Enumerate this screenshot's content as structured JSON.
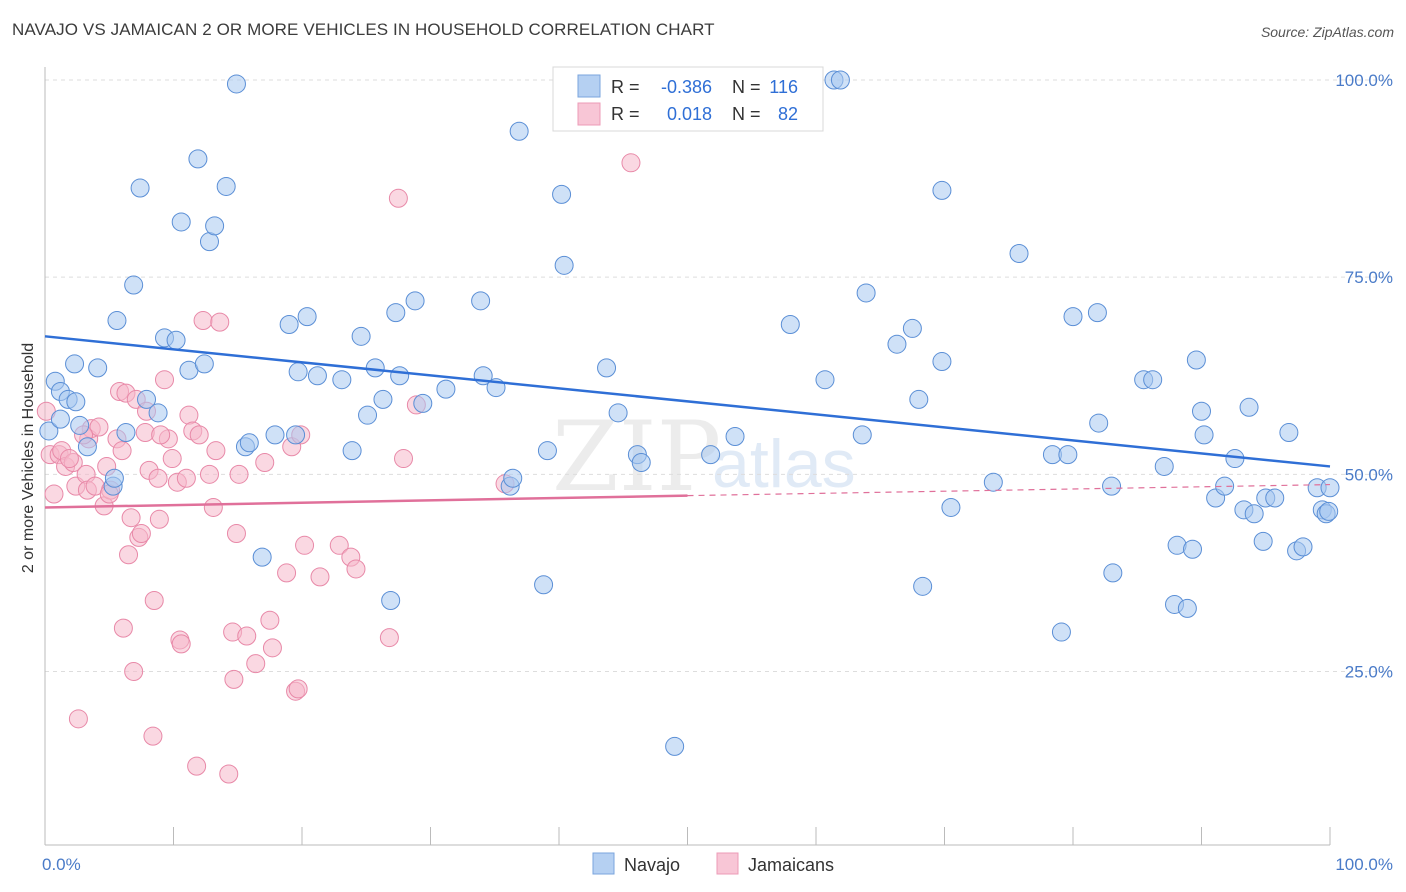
{
  "title": "NAVAJO VS JAMAICAN 2 OR MORE VEHICLES IN HOUSEHOLD CORRELATION CHART",
  "source": "Source: ZipAtlas.com",
  "watermark": {
    "zip": "ZIP",
    "atlas": "atlas"
  },
  "colors": {
    "navajo_fill": "#a8c8f0",
    "navajo_stroke": "#5b8fd6",
    "navajo_line": "#2f6fd6",
    "jamaican_fill": "#f6b8cb",
    "jamaican_stroke": "#e889a8",
    "jamaican_line": "#e0709a",
    "axis_label": "#4a7bc8",
    "grid": "#dddddd"
  },
  "legend": {
    "rows": [
      {
        "r_label": "R =",
        "r_value": "-0.386",
        "n_label": "N =",
        "n_value": "116"
      },
      {
        "r_label": "R =",
        "r_value": "0.018",
        "n_label": "N =",
        "n_value": "82"
      }
    ]
  },
  "chart_data": {
    "type": "scatter",
    "title": "NAVAJO VS JAMAICAN 2 OR MORE VEHICLES IN HOUSEHOLD CORRELATION CHART",
    "xlabel": "",
    "ylabel": "2 or more Vehicles in Household",
    "xlim": [
      0,
      100
    ],
    "ylim": [
      3,
      100
    ],
    "x_tick_labels": [
      "0.0%",
      "100.0%"
    ],
    "y_ticks": [
      25,
      50,
      75,
      100
    ],
    "y_tick_labels": [
      "25.0%",
      "50.0%",
      "75.0%",
      "100.0%"
    ],
    "grid": true,
    "legend_position": "top-center",
    "series": [
      {
        "name": "Navajo",
        "r": -0.386,
        "n": 116,
        "trend": {
          "x": [
            0,
            100
          ],
          "y": [
            67.5,
            51.0
          ],
          "style": "solid"
        },
        "points": [
          [
            0.3,
            55.5
          ],
          [
            0.8,
            61.8
          ],
          [
            1.2,
            60.5
          ],
          [
            1.8,
            59.5
          ],
          [
            2.4,
            59.2
          ],
          [
            2.7,
            56.2
          ],
          [
            3.3,
            53.5
          ],
          [
            4.1,
            63.5
          ],
          [
            5.3,
            48.5
          ],
          [
            5.4,
            49.5
          ],
          [
            5.6,
            69.5
          ],
          [
            6.3,
            55.3
          ],
          [
            6.9,
            74.0
          ],
          [
            7.4,
            86.3
          ],
          [
            7.9,
            59.5
          ],
          [
            8.8,
            57.8
          ],
          [
            9.3,
            67.3
          ],
          [
            10.2,
            67.0
          ],
          [
            10.6,
            82.0
          ],
          [
            11.2,
            63.2
          ],
          [
            11.9,
            90.0
          ],
          [
            12.4,
            64.0
          ],
          [
            12.8,
            79.5
          ],
          [
            13.2,
            81.5
          ],
          [
            14.1,
            86.5
          ],
          [
            14.9,
            99.5
          ],
          [
            15.6,
            53.5
          ],
          [
            15.9,
            54.0
          ],
          [
            16.9,
            39.5
          ],
          [
            17.9,
            55.0
          ],
          [
            19.0,
            69.0
          ],
          [
            19.5,
            55.0
          ],
          [
            19.7,
            63.0
          ],
          [
            20.4,
            70.0
          ],
          [
            21.2,
            62.5
          ],
          [
            23.1,
            62.0
          ],
          [
            23.9,
            53.0
          ],
          [
            24.6,
            67.5
          ],
          [
            25.1,
            57.5
          ],
          [
            25.7,
            63.5
          ],
          [
            26.3,
            59.5
          ],
          [
            26.9,
            34.0
          ],
          [
            27.3,
            70.5
          ],
          [
            27.6,
            62.5
          ],
          [
            28.8,
            72.0
          ],
          [
            29.4,
            59.0
          ],
          [
            31.2,
            60.8
          ],
          [
            33.9,
            72.0
          ],
          [
            34.1,
            62.5
          ],
          [
            35.1,
            61.0
          ],
          [
            36.2,
            48.5
          ],
          [
            36.4,
            49.5
          ],
          [
            36.9,
            93.5
          ],
          [
            38.8,
            36.0
          ],
          [
            39.1,
            53.0
          ],
          [
            40.2,
            85.5
          ],
          [
            40.4,
            76.5
          ],
          [
            43.7,
            63.5
          ],
          [
            44.6,
            57.8
          ],
          [
            46.1,
            52.5
          ],
          [
            46.4,
            51.5
          ],
          [
            49.0,
            15.5
          ],
          [
            51.8,
            52.5
          ],
          [
            53.7,
            54.8
          ],
          [
            58.0,
            69.0
          ],
          [
            60.7,
            62.0
          ],
          [
            61.4,
            100.0
          ],
          [
            61.9,
            100.0
          ],
          [
            63.6,
            55.0
          ],
          [
            63.9,
            73.0
          ],
          [
            66.3,
            66.5
          ],
          [
            67.5,
            68.5
          ],
          [
            68.0,
            59.5
          ],
          [
            68.3,
            35.8
          ],
          [
            69.8,
            64.3
          ],
          [
            69.8,
            86.0
          ],
          [
            70.5,
            45.8
          ],
          [
            73.8,
            49.0
          ],
          [
            75.8,
            78.0
          ],
          [
            78.4,
            52.5
          ],
          [
            79.1,
            30.0
          ],
          [
            79.6,
            52.5
          ],
          [
            80.0,
            70.0
          ],
          [
            81.9,
            70.5
          ],
          [
            82.0,
            56.5
          ],
          [
            83.0,
            48.5
          ],
          [
            83.1,
            37.5
          ],
          [
            85.5,
            62.0
          ],
          [
            86.2,
            62.0
          ],
          [
            87.1,
            51.0
          ],
          [
            87.9,
            33.5
          ],
          [
            88.1,
            41.0
          ],
          [
            88.9,
            33.0
          ],
          [
            89.3,
            40.5
          ],
          [
            89.6,
            64.5
          ],
          [
            90.0,
            58.0
          ],
          [
            90.2,
            55.0
          ],
          [
            91.1,
            47.0
          ],
          [
            91.8,
            48.5
          ],
          [
            92.6,
            52.0
          ],
          [
            93.3,
            45.5
          ],
          [
            93.7,
            58.5
          ],
          [
            94.1,
            45.0
          ],
          [
            94.8,
            41.5
          ],
          [
            95.0,
            47.0
          ],
          [
            95.7,
            47.0
          ],
          [
            96.8,
            55.3
          ],
          [
            97.4,
            40.3
          ],
          [
            97.9,
            40.8
          ],
          [
            99.0,
            48.3
          ],
          [
            99.4,
            45.5
          ],
          [
            99.7,
            45.0
          ],
          [
            100.0,
            48.3
          ],
          [
            99.9,
            45.3
          ],
          [
            1.2,
            57.0
          ],
          [
            2.3,
            64.0
          ]
        ]
      },
      {
        "name": "Jamaicans",
        "r": 0.018,
        "n": 82,
        "trend": {
          "x": [
            0,
            50
          ],
          "y": [
            45.8,
            47.3
          ],
          "style": "solid",
          "extension": {
            "x": [
              50,
              100
            ],
            "y": [
              47.3,
              48.7
            ],
            "style": "dashed"
          }
        },
        "points": [
          [
            0.1,
            58.0
          ],
          [
            0.4,
            52.5
          ],
          [
            0.7,
            47.5
          ],
          [
            1.1,
            52.5
          ],
          [
            1.3,
            53.0
          ],
          [
            1.6,
            51.0
          ],
          [
            2.2,
            51.5
          ],
          [
            2.4,
            48.5
          ],
          [
            2.6,
            19.0
          ],
          [
            3.2,
            50.0
          ],
          [
            3.3,
            48.0
          ],
          [
            3.4,
            54.5
          ],
          [
            3.6,
            55.8
          ],
          [
            3.9,
            48.5
          ],
          [
            4.2,
            56.0
          ],
          [
            4.6,
            46.0
          ],
          [
            4.8,
            51.0
          ],
          [
            5.1,
            48.0
          ],
          [
            5.6,
            54.5
          ],
          [
            5.8,
            60.5
          ],
          [
            6.1,
            30.5
          ],
          [
            6.3,
            60.3
          ],
          [
            6.5,
            39.8
          ],
          [
            6.7,
            44.5
          ],
          [
            6.9,
            25.0
          ],
          [
            7.1,
            59.5
          ],
          [
            7.3,
            42.0
          ],
          [
            7.5,
            42.5
          ],
          [
            7.8,
            55.3
          ],
          [
            7.9,
            58.0
          ],
          [
            8.1,
            50.5
          ],
          [
            8.4,
            16.8
          ],
          [
            8.5,
            34.0
          ],
          [
            8.8,
            49.5
          ],
          [
            8.9,
            44.3
          ],
          [
            9.3,
            62.0
          ],
          [
            9.6,
            54.5
          ],
          [
            9.9,
            52.0
          ],
          [
            10.3,
            49.0
          ],
          [
            10.5,
            29.0
          ],
          [
            10.6,
            28.5
          ],
          [
            11.2,
            57.5
          ],
          [
            11.5,
            55.5
          ],
          [
            11.8,
            13.0
          ],
          [
            12.0,
            55.0
          ],
          [
            12.3,
            69.5
          ],
          [
            12.8,
            50.0
          ],
          [
            13.1,
            45.8
          ],
          [
            13.3,
            53.0
          ],
          [
            13.6,
            69.3
          ],
          [
            14.3,
            12.0
          ],
          [
            14.6,
            30.0
          ],
          [
            14.7,
            24.0
          ],
          [
            14.9,
            42.5
          ],
          [
            15.1,
            50.0
          ],
          [
            15.7,
            29.5
          ],
          [
            16.4,
            26.0
          ],
          [
            17.1,
            51.5
          ],
          [
            17.5,
            31.5
          ],
          [
            17.7,
            28.0
          ],
          [
            18.8,
            37.5
          ],
          [
            19.2,
            53.5
          ],
          [
            19.5,
            22.5
          ],
          [
            19.7,
            22.8
          ],
          [
            19.9,
            55.0
          ],
          [
            20.2,
            41.0
          ],
          [
            21.4,
            37.0
          ],
          [
            22.9,
            41.0
          ],
          [
            23.8,
            39.5
          ],
          [
            24.2,
            38.0
          ],
          [
            26.8,
            29.3
          ],
          [
            27.5,
            85.0
          ],
          [
            27.9,
            52.0
          ],
          [
            28.9,
            58.8
          ],
          [
            35.8,
            48.8
          ],
          [
            45.6,
            89.5
          ],
          [
            3.0,
            55.0
          ],
          [
            5.0,
            47.5
          ],
          [
            9.0,
            55.0
          ],
          [
            11.0,
            49.5
          ],
          [
            1.9,
            52.0
          ],
          [
            6.0,
            53.0
          ]
        ]
      }
    ]
  },
  "bottom_legend": {
    "navajo": "Navajo",
    "jamaicans": "Jamaicans"
  }
}
